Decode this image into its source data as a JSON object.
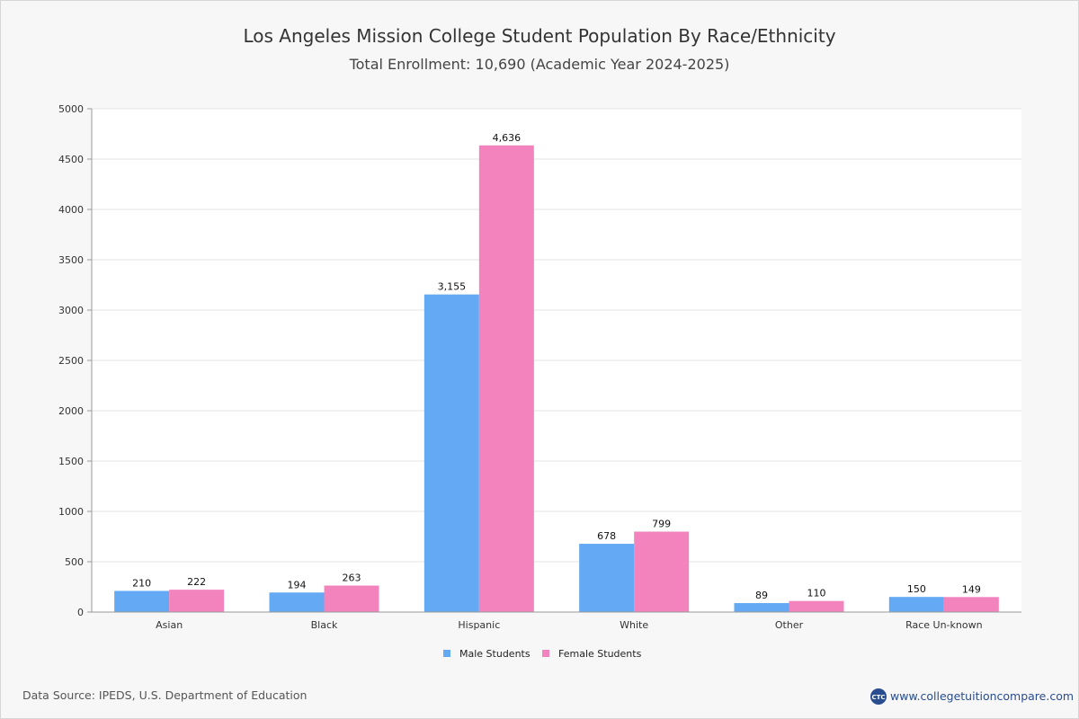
{
  "chart_data": {
    "type": "bar",
    "title": "Los Angeles Mission College Student Population By Race/Ethnicity",
    "subtitle": "Total Enrollment: 10,690 (Academic Year 2024-2025)",
    "categories": [
      "Asian",
      "Black",
      "Hispanic",
      "White",
      "Other",
      "Race Un-known"
    ],
    "series": [
      {
        "name": "Male Students",
        "color": "#63a9f3",
        "values": [
          210,
          194,
          3155,
          678,
          89,
          150
        ],
        "labels": [
          "210",
          "194",
          "3,155",
          "678",
          "89",
          "150"
        ]
      },
      {
        "name": "Female Students",
        "color": "#f283bd",
        "values": [
          222,
          263,
          4636,
          799,
          110,
          149
        ],
        "labels": [
          "222",
          "263",
          "4,636",
          "799",
          "110",
          "149"
        ]
      }
    ],
    "ylim": [
      0,
      5000
    ],
    "yticks": [
      0,
      500,
      1000,
      1500,
      2000,
      2500,
      3000,
      3500,
      4000,
      4500,
      5000
    ],
    "grid": true,
    "legend": "bottom-center",
    "xlabel": "",
    "ylabel": ""
  },
  "footer": {
    "source": "Data Source: IPEDS, U.S. Department of Education",
    "website": "www.collegetuitioncompare.com",
    "logo_text": "CTC"
  }
}
